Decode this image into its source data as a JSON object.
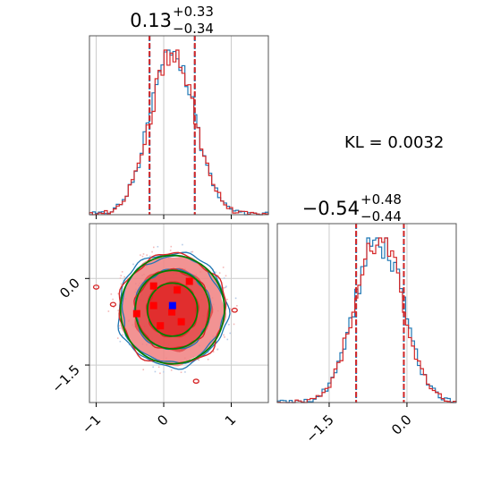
{
  "chart_data": {
    "type": "corner",
    "annotation": "KL = 0.0032",
    "colors": {
      "series_a": "#1f77b4",
      "series_b": "#d62728",
      "fill": "#f08080",
      "fill_dark": "#e04040",
      "ellipse": "#008000",
      "marker_true": "#0000ff",
      "marker_samples": "#ff0000",
      "grid": "#cccccc"
    },
    "panels": [
      {
        "id": "p1-marginal",
        "type": "histogram",
        "title": {
          "value": "0.13",
          "plus": "+0.33",
          "minus": "−0.34"
        },
        "xlim": [
          -1.1,
          1.55
        ],
        "quantiles": [
          -0.21,
          0.46
        ],
        "center": 0.13,
        "sigma": 0.33,
        "ticks": [
          -1,
          0,
          1
        ],
        "series": [
          {
            "name": "",
            "color": "#1f77b4"
          },
          {
            "name": "",
            "color": "#d62728"
          }
        ]
      },
      {
        "id": "p2-marginal",
        "type": "histogram",
        "title": {
          "value": "−0.54",
          "plus": "+0.48",
          "minus": "−0.44"
        },
        "xlim": [
          -2.5,
          0.95
        ],
        "quantiles": [
          -0.98,
          -0.06
        ],
        "center": -0.54,
        "sigma": 0.46,
        "ticks": [
          -1.5,
          0.0
        ],
        "tick_labels": [
          "−1.5",
          "0.0"
        ],
        "series": [
          {
            "name": "",
            "color": "#1f77b4"
          },
          {
            "name": "",
            "color": "#d62728"
          }
        ]
      },
      {
        "id": "joint",
        "type": "contour",
        "xlim": [
          -1.1,
          1.55
        ],
        "ylim": [
          -2.15,
          0.95
        ],
        "xticks": [
          -1,
          0,
          1
        ],
        "xtick_labels": [
          "−1",
          "0",
          "1"
        ],
        "yticks": [
          0.0,
          -1.5
        ],
        "ytick_labels": [
          "0.0",
          "−1.5"
        ],
        "ellipses": [
          {
            "cx": 0.13,
            "cy": -0.54,
            "rx": 0.77,
            "ry": 0.94
          },
          {
            "cx": 0.13,
            "cy": -0.54,
            "rx": 0.55,
            "ry": 0.68
          },
          {
            "cx": 0.13,
            "cy": -0.54,
            "rx": 0.37,
            "ry": 0.46
          }
        ],
        "true_point": {
          "x": 0.13,
          "y": -0.47
        },
        "sample_points": [
          {
            "x": -0.15,
            "y": -0.13
          },
          {
            "x": 0.2,
            "y": -0.2
          },
          {
            "x": 0.38,
            "y": -0.05
          },
          {
            "x": -0.15,
            "y": -0.47
          },
          {
            "x": 0.12,
            "y": -0.58
          },
          {
            "x": 0.26,
            "y": -0.75
          },
          {
            "x": -0.4,
            "y": -0.61
          },
          {
            "x": -0.05,
            "y": -0.82
          }
        ]
      }
    ]
  }
}
